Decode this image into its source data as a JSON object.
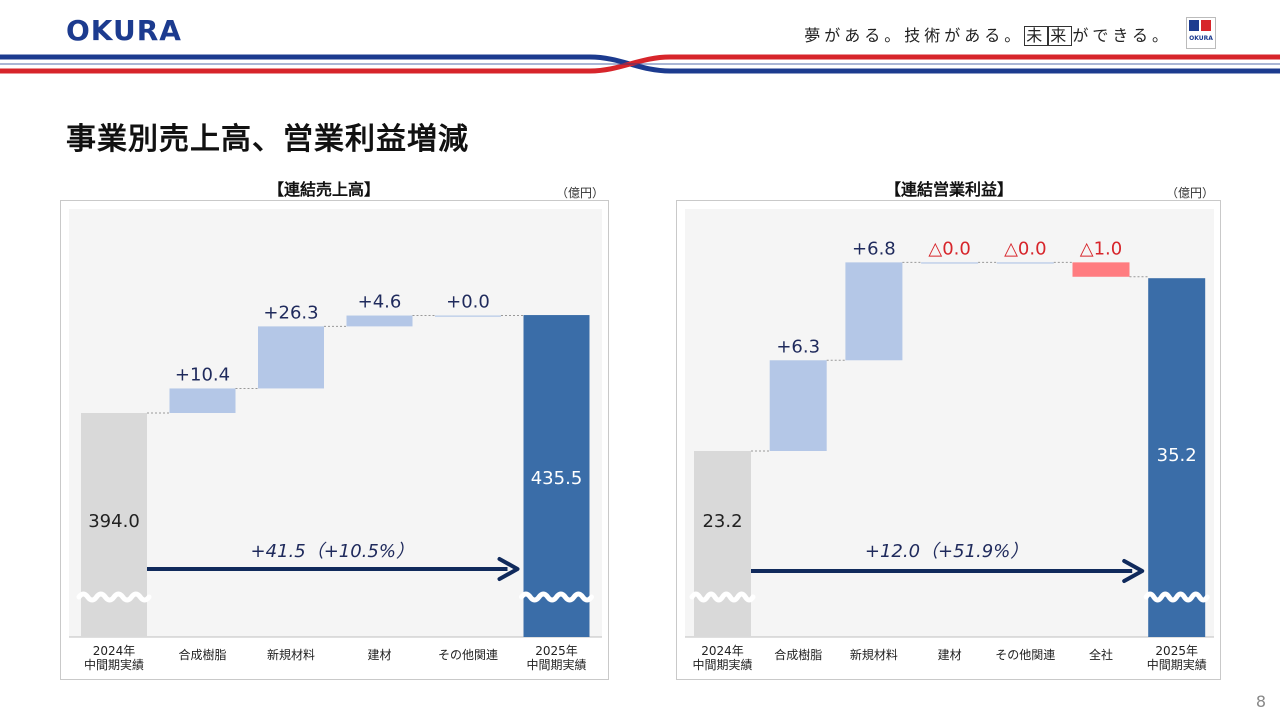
{
  "header": {
    "logo_text": "OKURA",
    "tagline_prefix": "夢がある。技術がある。",
    "tagline_box1": "未",
    "tagline_box2": "来",
    "tagline_suffix": "ができる。",
    "corner_logo_text": "OKURA"
  },
  "page_title": "事業別売上高、営業利益増減",
  "page_number": "8",
  "colors": {
    "start_bar": "#d9d9d9",
    "increase_bar": "#b4c7e7",
    "decrease_bar": "#ff7c80",
    "end_bar": "#3a6da8",
    "arrow": "#102a5c",
    "label_navy": "#1f2a5c",
    "label_red": "#d7252b",
    "brand_blue": "#1c3b8f",
    "brand_red": "#d7252b"
  },
  "chart_data": [
    {
      "type": "bar",
      "subtype": "waterfall",
      "title": "【連結売上高】",
      "unit": "（億円）",
      "categories": [
        [
          "2024年",
          "中間期実績"
        ],
        [
          "合成樹脂"
        ],
        [
          "新規材料"
        ],
        [
          "建材"
        ],
        [
          "その他関連"
        ],
        [
          "2025年",
          "中間期実績"
        ]
      ],
      "values": [
        394.0,
        10.4,
        26.3,
        4.6,
        0.0,
        435.5
      ],
      "kinds": [
        "total",
        "delta",
        "delta",
        "delta",
        "delta",
        "total"
      ],
      "value_labels": [
        "394.0",
        "+10.4",
        "+26.3",
        "+4.6",
        "+0.0",
        "435.5"
      ],
      "axis_break": true,
      "change_label": "+41.5（+10.5%）"
    },
    {
      "type": "bar",
      "subtype": "waterfall",
      "title": "【連結営業利益】",
      "unit": "（億円）",
      "categories": [
        [
          "2024年",
          "中間期実績"
        ],
        [
          "合成樹脂"
        ],
        [
          "新規材料"
        ],
        [
          "建材"
        ],
        [
          "その他関連"
        ],
        [
          "全社"
        ],
        [
          "2025年",
          "中間期実績"
        ]
      ],
      "values": [
        23.2,
        6.3,
        6.8,
        0.0,
        0.0,
        -1.0,
        35.2
      ],
      "kinds": [
        "total",
        "delta",
        "delta",
        "delta",
        "delta",
        "delta",
        "total"
      ],
      "value_labels": [
        "23.2",
        "+6.3",
        "+6.8",
        "△0.0",
        "△0.0",
        "△1.0",
        "35.2"
      ],
      "axis_break": true,
      "change_label": "+12.0（+51.9%）"
    }
  ]
}
